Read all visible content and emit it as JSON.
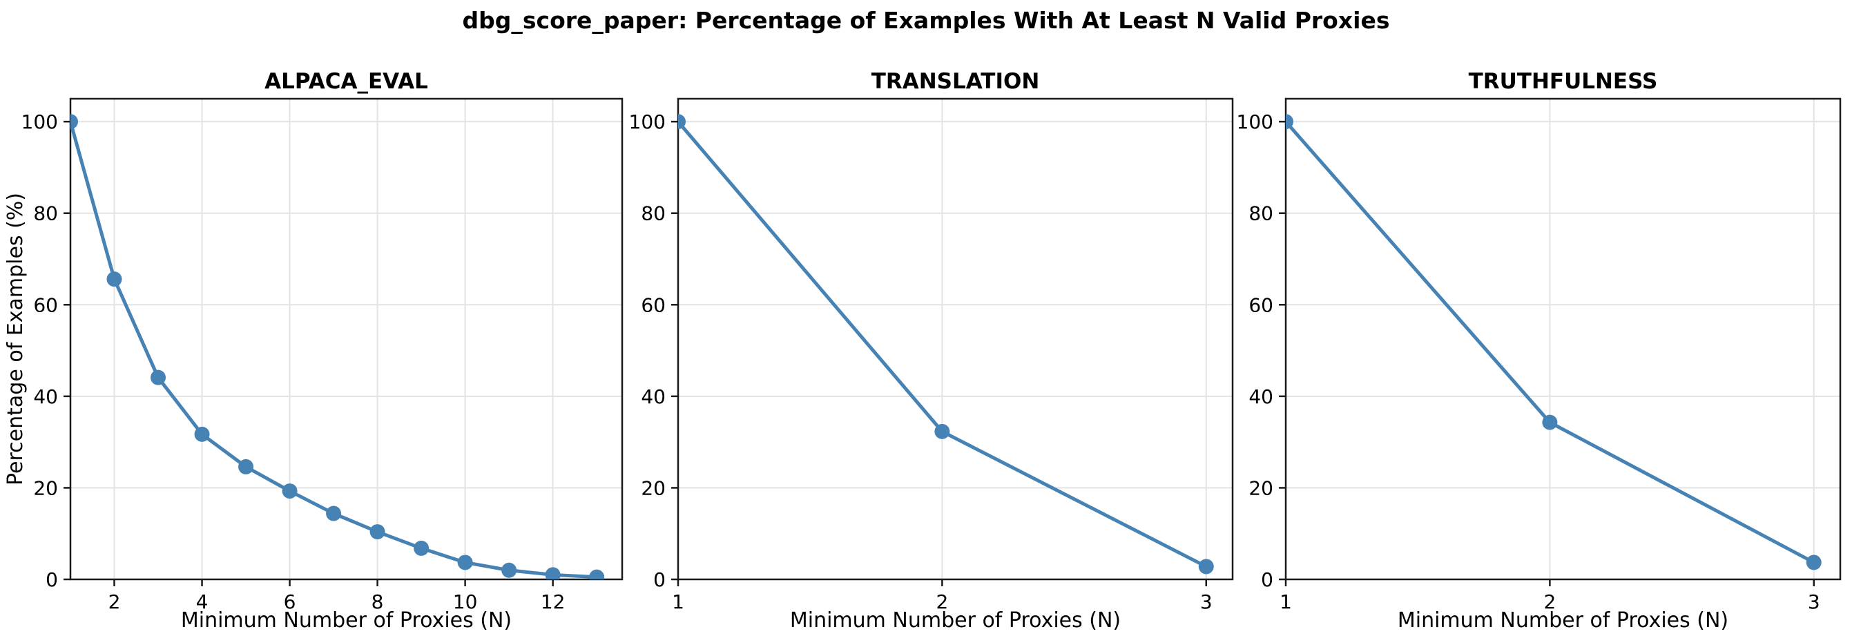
{
  "chart_data": {
    "type": "line",
    "title": "dbg_score_paper: Percentage of Examples With At Least N Valid Proxies",
    "line_color": "#4682B4",
    "marker": "circle",
    "grid": true,
    "legend": "none",
    "ylim": [
      0,
      105
    ],
    "y_ticks": [
      0,
      20,
      40,
      60,
      80,
      100
    ],
    "subplots": [
      {
        "title": "ALPACA_EVAL",
        "xlabel": "Minimum Number of Proxies (N)",
        "ylabel": "Percentage of Examples (%)",
        "x": [
          1,
          2,
          3,
          4,
          5,
          6,
          7,
          8,
          9,
          10,
          11,
          12,
          13
        ],
        "y": [
          100,
          65.6,
          44.1,
          31.7,
          24.6,
          19.3,
          14.4,
          10.4,
          6.8,
          3.7,
          2.0,
          1.0,
          0.5
        ],
        "x_ticks": [
          2,
          4,
          6,
          8,
          10,
          12
        ],
        "xlim": [
          1,
          13.58
        ]
      },
      {
        "title": "TRANSLATION",
        "xlabel": "Minimum Number of Proxies (N)",
        "ylabel": "",
        "x": [
          1,
          2,
          3
        ],
        "y": [
          100,
          32.3,
          2.8
        ],
        "x_ticks": [
          1,
          2,
          3
        ],
        "xlim": [
          1,
          3.1
        ]
      },
      {
        "title": "TRUTHFULNESS",
        "xlabel": "Minimum Number of Proxies (N)",
        "ylabel": "",
        "x": [
          1,
          2,
          3
        ],
        "y": [
          100,
          34.3,
          3.7
        ],
        "x_ticks": [
          1,
          2,
          3
        ],
        "xlim": [
          1,
          3.1
        ]
      }
    ],
    "style": {
      "spine_color": "#1a1a1a",
      "grid_color": "#e3e3e3",
      "text_color": "#000000"
    }
  }
}
